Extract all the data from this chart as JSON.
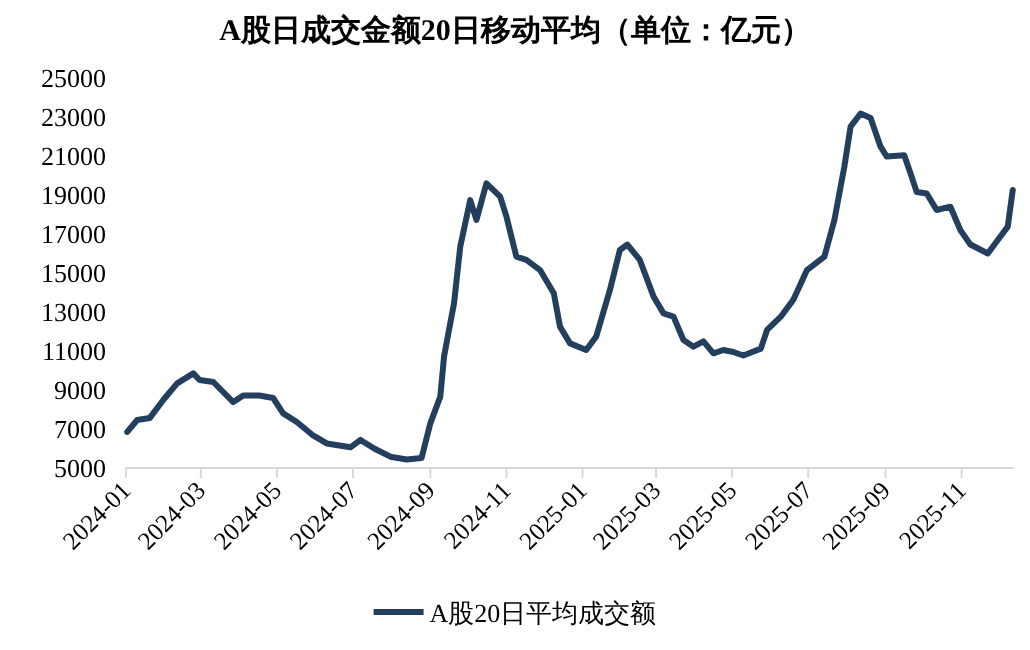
{
  "chart_data": {
    "type": "line",
    "title": "A股日成交金额20日移动平均（单位：亿元）",
    "x": [
      "2024-01-02",
      "2024-01-10",
      "2024-01-20",
      "2024-01-31",
      "2024-02-11",
      "2024-02-24",
      "2024-02-29",
      "2024-03-11",
      "2024-03-27",
      "2024-04-04",
      "2024-04-17",
      "2024-04-28",
      "2024-05-06",
      "2024-05-17",
      "2024-05-30",
      "2024-06-10",
      "2024-06-29",
      "2024-07-07",
      "2024-07-18",
      "2024-07-31",
      "2024-08-13",
      "2024-08-25",
      "2024-09-01",
      "2024-09-09",
      "2024-09-12",
      "2024-09-15",
      "2024-09-20",
      "2024-09-25",
      "2024-10-03",
      "2024-10-08",
      "2024-10-16",
      "2024-10-27",
      "2024-11-01",
      "2024-11-09",
      "2024-11-17",
      "2024-11-28",
      "2024-12-09",
      "2024-12-14",
      "2024-12-22",
      "2025-01-04",
      "2025-01-12",
      "2025-01-23",
      "2025-01-31",
      "2025-02-06",
      "2025-02-16",
      "2025-02-27",
      "2025-03-07",
      "2025-03-15",
      "2025-03-23",
      "2025-03-31",
      "2025-04-08",
      "2025-04-16",
      "2025-04-24",
      "2025-05-02",
      "2025-05-10",
      "2025-05-24",
      "2025-05-29",
      "2025-06-09",
      "2025-06-19",
      "2025-06-30",
      "2025-07-14",
      "2025-07-22",
      "2025-07-30",
      "2025-08-04",
      "2025-08-12",
      "2025-08-20",
      "2025-08-28",
      "2025-09-02",
      "2025-09-16",
      "2025-09-21",
      "2025-09-26",
      "2025-10-04",
      "2025-10-12",
      "2025-10-23",
      "2025-10-31",
      "2025-11-08",
      "2025-11-22",
      "2025-11-30",
      "2025-12-08",
      "2025-12-12"
    ],
    "series": [
      {
        "name": "A股20日平均成交额",
        "color": "#243f5e",
        "values": [
          6850,
          7460,
          7560,
          8500,
          9340,
          9850,
          9510,
          9410,
          8380,
          8720,
          8720,
          8590,
          7800,
          7360,
          6670,
          6260,
          6060,
          6440,
          6000,
          5580,
          5440,
          5510,
          7290,
          8660,
          10710,
          11740,
          13440,
          16350,
          18740,
          17720,
          19600,
          18920,
          17900,
          15840,
          15670,
          15150,
          13960,
          12250,
          11390,
          11050,
          11740,
          14130,
          16180,
          16460,
          15670,
          13790,
          12930,
          12760,
          11560,
          11220,
          11490,
          10880,
          11050,
          10950,
          10770,
          11120,
          12080,
          12760,
          13620,
          15150,
          15840,
          17720,
          20460,
          22510,
          23180,
          22950,
          21480,
          20970,
          21040,
          20120,
          19150,
          19080,
          18230,
          18400,
          17200,
          16460,
          16000,
          16690,
          17380,
          19260
        ]
      }
    ],
    "xlim": [
      "2024-01-01",
      "2025-12-13"
    ],
    "xticks": [
      "2024-01",
      "2024-03",
      "2024-05",
      "2024-07",
      "2024-09",
      "2024-11",
      "2025-01",
      "2025-03",
      "2025-05",
      "2025-07",
      "2025-09",
      "2025-11"
    ],
    "ylim": [
      5000,
      25000
    ],
    "yticks": [
      5000,
      7000,
      9000,
      11000,
      13000,
      15000,
      17000,
      19000,
      21000,
      23000,
      25000
    ],
    "legend": "bottom"
  }
}
